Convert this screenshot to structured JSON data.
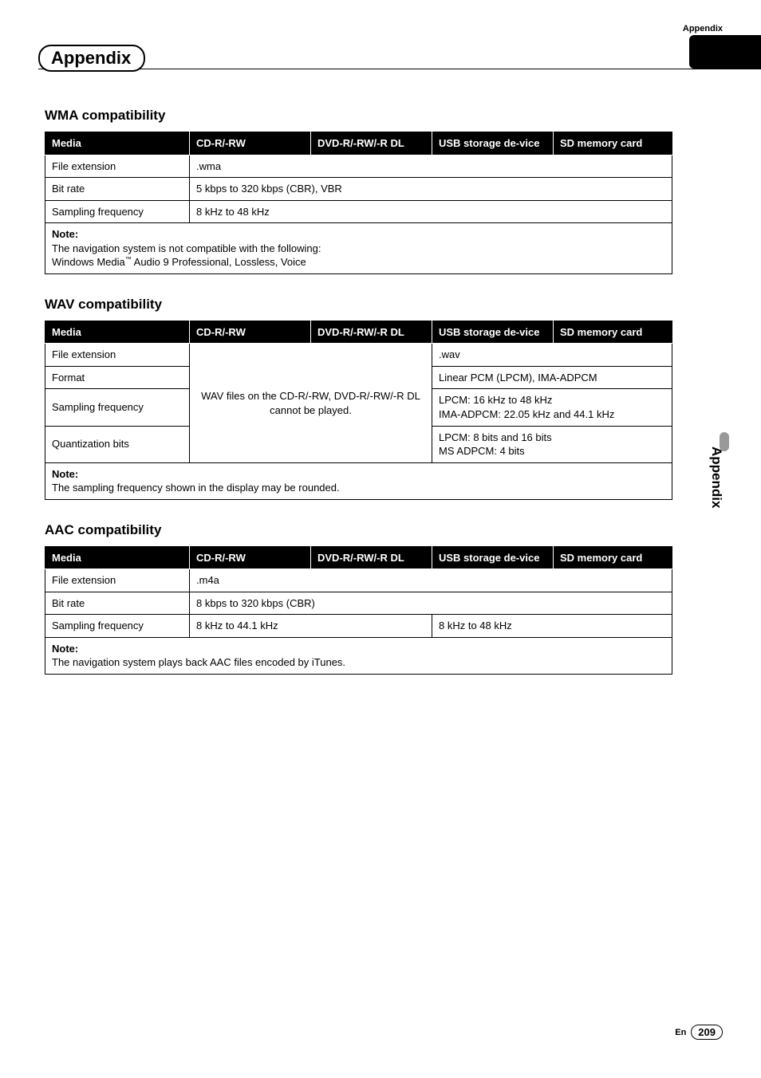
{
  "header": {
    "cornerLabel": "Appendix",
    "title": "Appendix",
    "sideTab": "Appendix"
  },
  "columns": {
    "media": "Media",
    "cd": "CD-R/-RW",
    "dvd": "DVD-R/-RW/-R DL",
    "usb": "USB storage de-vice",
    "sd": "SD memory card"
  },
  "wma": {
    "heading": "WMA compatibility",
    "rows": {
      "fileExtLabel": "File extension",
      "fileExtVal": ".wma",
      "bitRateLabel": "Bit rate",
      "bitRateVal": "5 kbps to 320 kbps (CBR), VBR",
      "samplingLabel": "Sampling frequency",
      "samplingVal": "8 kHz to 48 kHz"
    },
    "noteLabel": "Note:",
    "noteLine1": "The navigation system is not compatible with the following:",
    "noteLine2a": "Windows Media",
    "noteLine2b": " Audio 9 Professional, Lossless, Voice",
    "tm": "™"
  },
  "wav": {
    "heading": "WAV compatibility",
    "rows": {
      "fileExtLabel": "File extension",
      "fileExtVal": ".wav",
      "formatLabel": "Format",
      "formatVal": "Linear PCM (LPCM), IMA-ADPCM",
      "mergedNote": "WAV files on the CD-R/-RW, DVD-R/-RW/-R DL cannot be played.",
      "samplingLabel": "Sampling frequency",
      "samplingVal": "LPCM: 16 kHz to 48 kHz\nIMA-ADPCM: 22.05 kHz and 44.1 kHz",
      "quantLabel": "Quantization bits",
      "quantVal": "LPCM: 8 bits and 16 bits\nMS ADPCM: 4 bits"
    },
    "noteLabel": "Note:",
    "noteText": "The sampling frequency shown in the display may be rounded."
  },
  "aac": {
    "heading": "AAC compatibility",
    "rows": {
      "fileExtLabel": "File extension",
      "fileExtVal": ".m4a",
      "bitRateLabel": "Bit rate",
      "bitRateVal": "8 kbps to 320 kbps (CBR)",
      "samplingLabel": "Sampling frequency",
      "samplingVal1": "8 kHz to 44.1 kHz",
      "samplingVal2": "8 kHz to 48 kHz"
    },
    "noteLabel": "Note:",
    "noteText": "The navigation system plays back AAC files encoded by iTunes."
  },
  "footer": {
    "lang": "En",
    "page": "209"
  },
  "colors": {
    "headerBg": "#000000",
    "headerFg": "#ffffff",
    "pageBg": "#ffffff",
    "border": "#000000",
    "sidePill": "#999999"
  }
}
